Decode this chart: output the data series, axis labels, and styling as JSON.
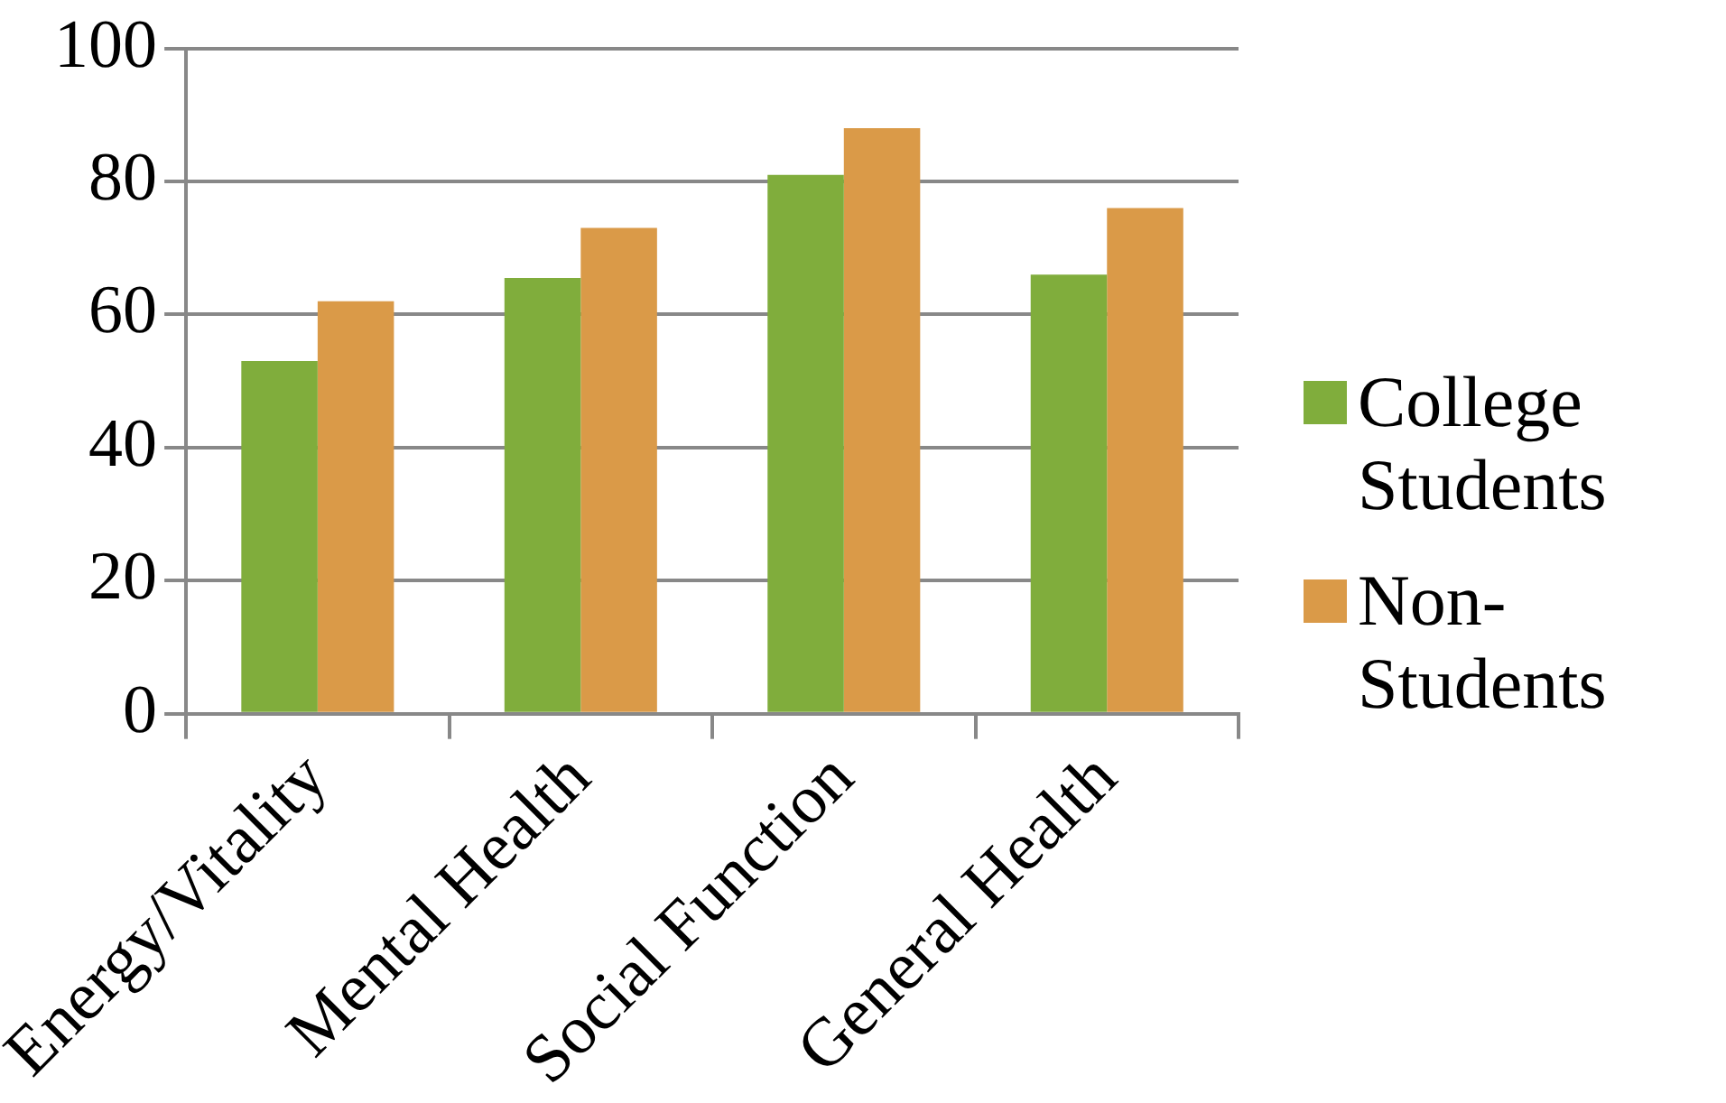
{
  "chart_data": {
    "type": "bar",
    "categories": [
      "Energy/Vitality",
      "Mental Health",
      "Social Function",
      "General Health"
    ],
    "series": [
      {
        "name": "College Students",
        "color": "#80ad3c",
        "values": [
          53,
          65.5,
          81,
          66
        ]
      },
      {
        "name": "Non-Students",
        "color": "#da9a48",
        "values": [
          62,
          73,
          88,
          76
        ]
      }
    ],
    "ylim": [
      0,
      100
    ],
    "yticks": [
      0,
      20,
      40,
      60,
      80,
      100
    ],
    "grid": "y",
    "legend": "right"
  }
}
